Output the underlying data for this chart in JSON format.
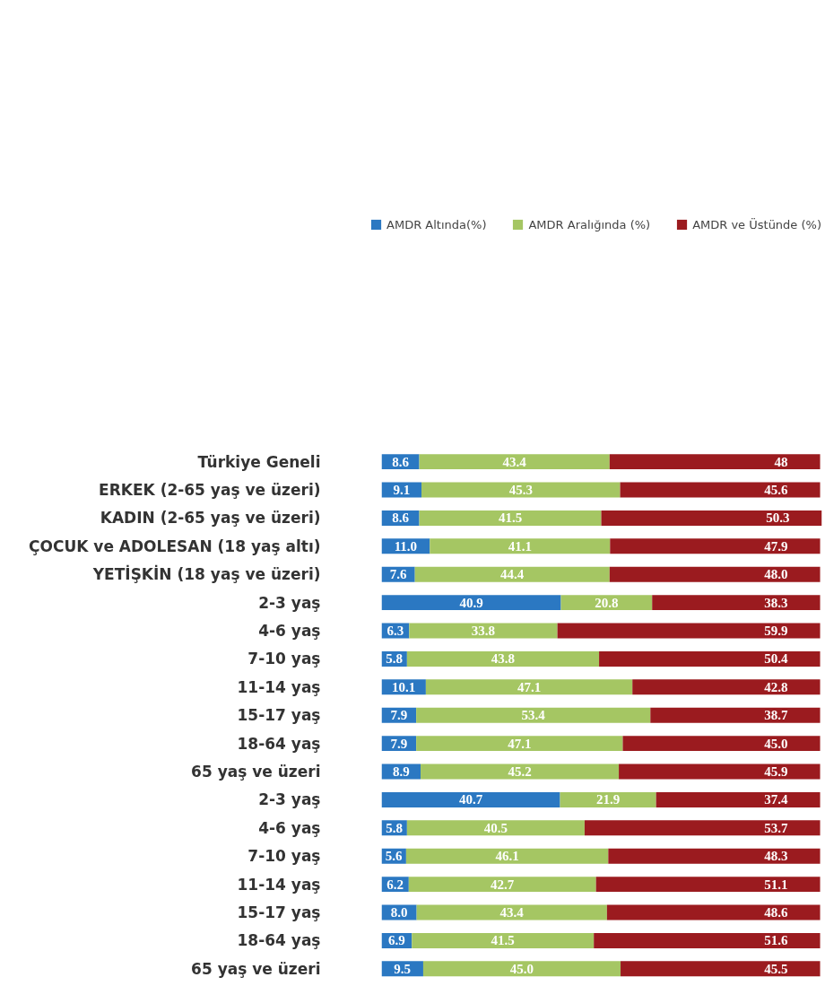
{
  "chart_data": {
    "type": "bar",
    "orientation": "horizontal",
    "stacked": true,
    "data_labels": true,
    "legend": "top right",
    "grid": false,
    "tick_labels": "y",
    "categories": [
      "Türkiye Geneli",
      "ERKEK (2-65 yaş ve üzeri)",
      "KADIN (2-65 yaş ve üzeri)",
      "ÇOCUK ve ADOLESAN (18 yaş altı)",
      "YETİŞKİN (18 yaş ve üzeri)",
      "2-3 yaş",
      "4-6 yaş",
      "7-10 yaş",
      "11-14 yaş",
      "15-17 yaş",
      "18-64 yaş",
      "65 yaş ve üzeri",
      "2-3 yaş",
      "4-6 yaş",
      "7-10 yaş",
      "11-14 yaş",
      "15-17 yaş",
      "18-64 yaş",
      "65 yaş ve üzeri"
    ],
    "series": [
      {
        "name": "AMDR Altında(%)",
        "color": "#2b78c2",
        "values": [
          8.6,
          9.1,
          8.6,
          11.0,
          7.6,
          40.9,
          6.3,
          5.8,
          10.1,
          7.9,
          7.9,
          8.9,
          40.7,
          5.8,
          5.6,
          6.2,
          8.0,
          6.9,
          9.5
        ],
        "value_labels": [
          "8.6",
          "9.1",
          "8.6",
          "11.0",
          "7.6",
          "40.9",
          "6.3",
          "5.8",
          "10.1",
          "7.9",
          "7.9",
          "8.9",
          "40.7",
          "5.8",
          "5.6",
          "6.2",
          "8.0",
          "6.9",
          "9.5"
        ]
      },
      {
        "name": "AMDR Aralığında (%)",
        "color": "#a5c663",
        "values": [
          43.4,
          45.3,
          41.5,
          41.1,
          44.4,
          20.8,
          33.8,
          43.8,
          47.1,
          53.4,
          47.1,
          45.2,
          21.9,
          40.5,
          46.1,
          42.7,
          43.4,
          41.5,
          45.0
        ],
        "value_labels": [
          "43.4",
          "45.3",
          "41.5",
          "41.1",
          "44.4",
          "20.8",
          "33.8",
          "43.8",
          "47.1",
          "53.4",
          "47.1",
          "45.2",
          "21.9",
          "40.5",
          "46.1",
          "42.7",
          "43.4",
          "41.5",
          "45.0"
        ]
      },
      {
        "name": "AMDR ve Üstünde (%)",
        "color": "#9b1b1f",
        "values": [
          48,
          45.6,
          50.3,
          47.9,
          48.0,
          38.3,
          59.9,
          50.4,
          42.8,
          38.7,
          45.0,
          45.9,
          37.4,
          53.7,
          48.3,
          51.1,
          48.6,
          51.6,
          45.5
        ],
        "value_labels": [
          "48",
          "45.6",
          "50.3",
          "47.9",
          "48.0",
          "38.3",
          "59.9",
          "50.4",
          "42.8",
          "38.7",
          "45.0",
          "45.9",
          "37.4",
          "53.7",
          "48.3",
          "51.1",
          "48.6",
          "51.6",
          "45.5"
        ]
      }
    ]
  }
}
